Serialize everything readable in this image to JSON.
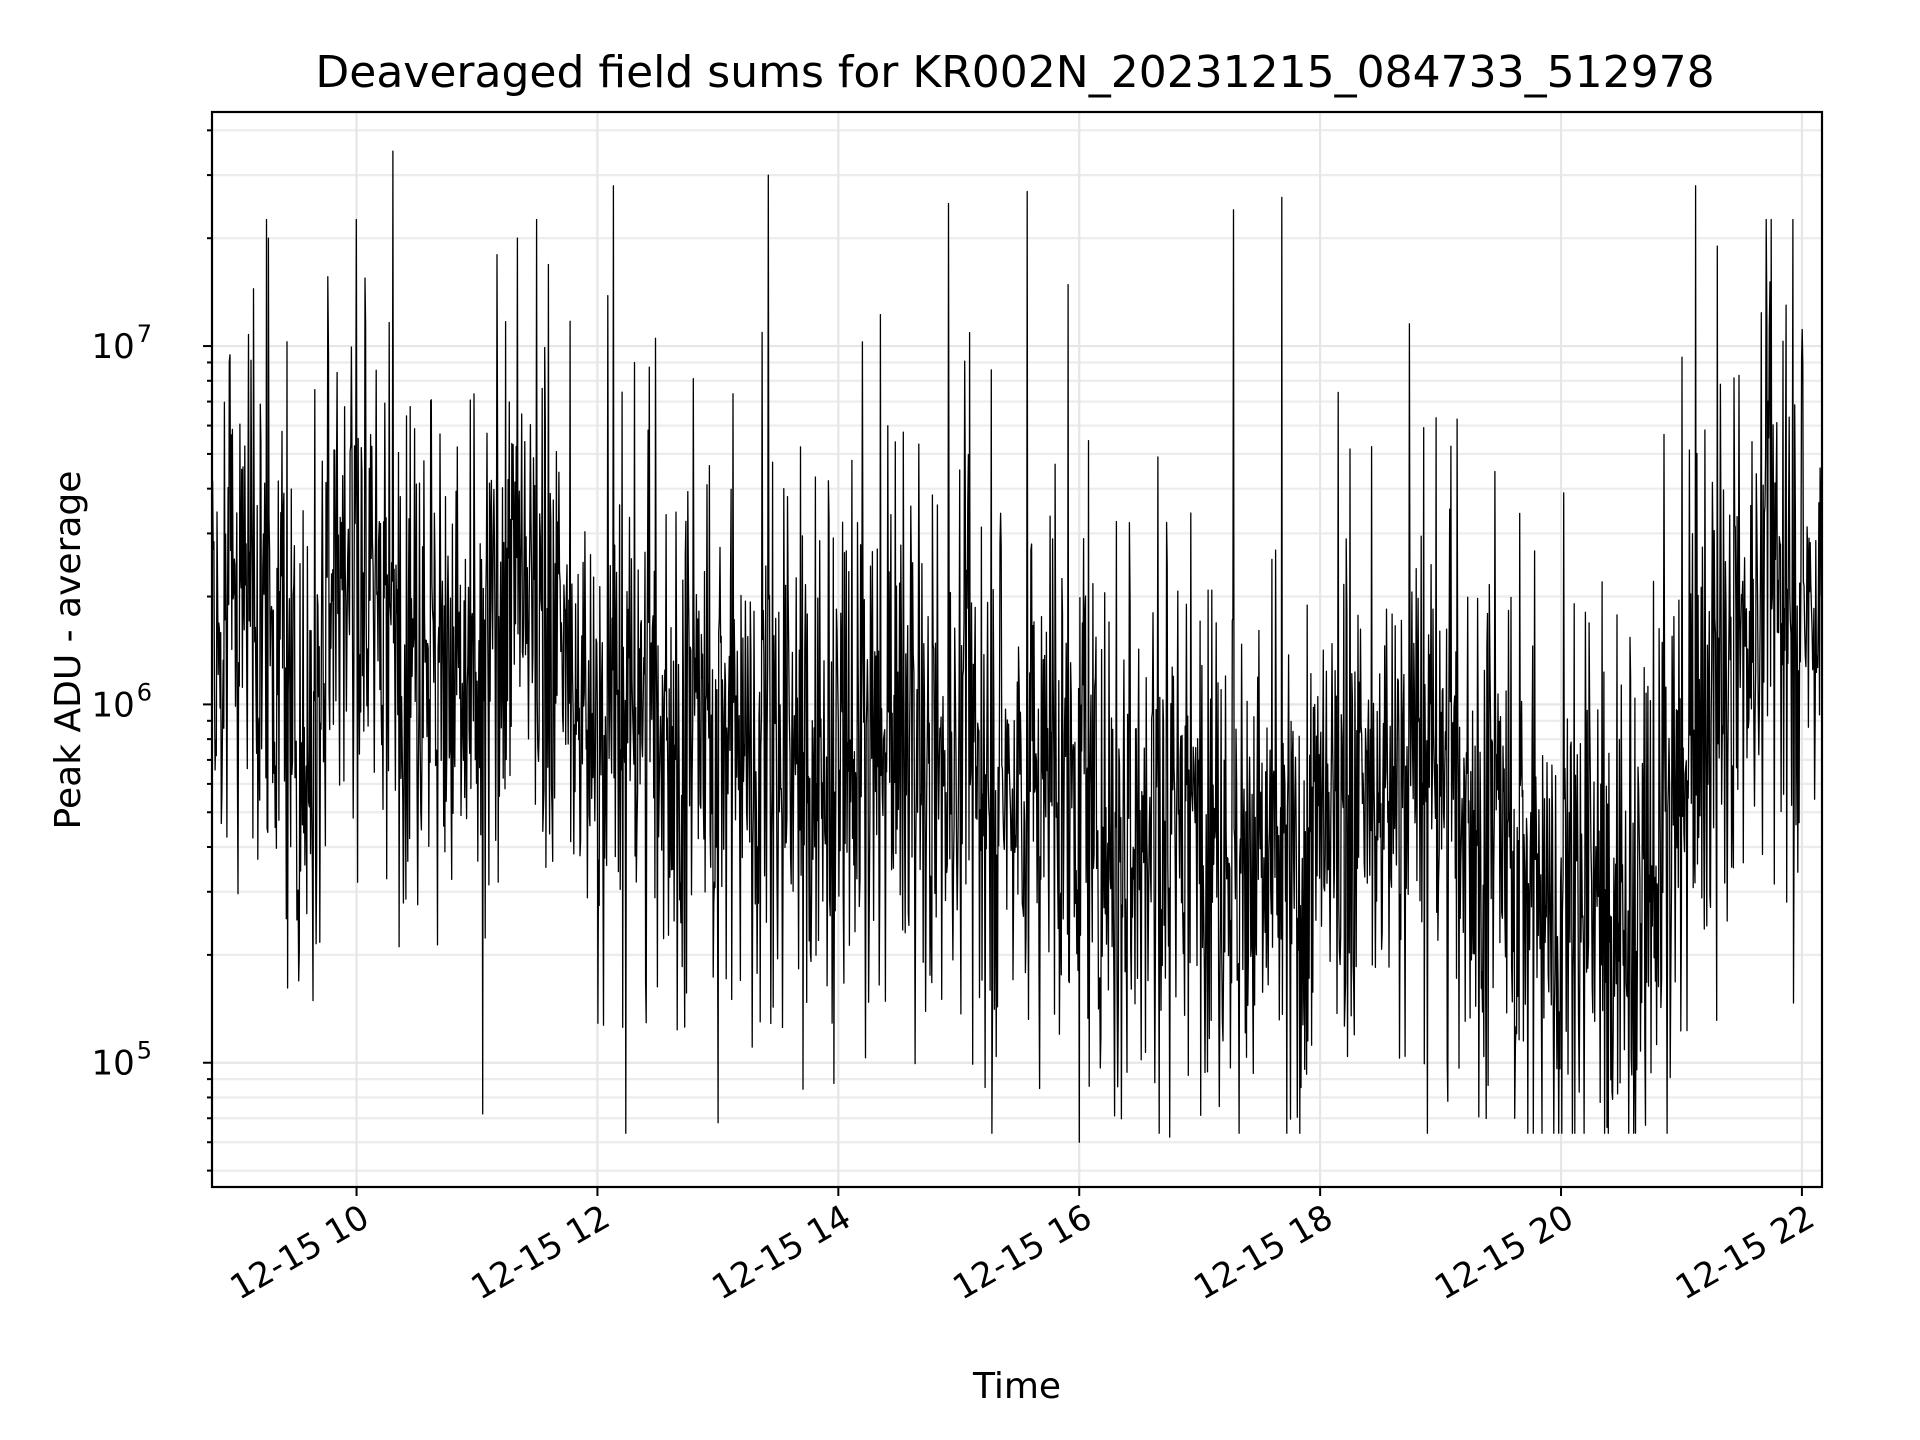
{
  "chart_data": {
    "type": "line",
    "title": "Deaveraged field sums for KR002N_20231215_084733_512978",
    "xlabel": "Time",
    "ylabel": "Peak ADU - average",
    "yscale": "log",
    "ylim": [
      45000,
      45000000
    ],
    "xlim": [
      "2023-12-15 08:48",
      "2023-12-15 22:10"
    ],
    "grid": true,
    "line_color": "#000000",
    "x_ticks": [
      "12-15 10",
      "12-15 12",
      "12-15 14",
      "12-15 16",
      "12-15 18",
      "12-15 20",
      "12-15 22"
    ],
    "y_ticks": [
      {
        "value": 100000,
        "base": "10",
        "exp": "5"
      },
      {
        "value": 1000000,
        "base": "10",
        "exp": "6"
      },
      {
        "value": 10000000,
        "base": "10",
        "exp": "7"
      }
    ],
    "series": [
      {
        "x": [
          "2023-12-15 08:48",
          "2023-12-15 09:00",
          "2023-12-15 09:12",
          "2023-12-15 09:24",
          "2023-12-15 09:36",
          "2023-12-15 09:48",
          "2023-12-15 10:00",
          "2023-12-15 10:12",
          "2023-12-15 10:24",
          "2023-12-15 10:36",
          "2023-12-15 10:48",
          "2023-12-15 11:00",
          "2023-12-15 11:12",
          "2023-12-15 11:24",
          "2023-12-15 11:36",
          "2023-12-15 11:48",
          "2023-12-15 12:00",
          "2023-12-15 12:12",
          "2023-12-15 12:24",
          "2023-12-15 12:36",
          "2023-12-15 12:48",
          "2023-12-15 13:00",
          "2023-12-15 13:12",
          "2023-12-15 13:24",
          "2023-12-15 13:36",
          "2023-12-15 13:48",
          "2023-12-15 14:00",
          "2023-12-15 14:12",
          "2023-12-15 14:24",
          "2023-12-15 14:36",
          "2023-12-15 14:48",
          "2023-12-15 15:00",
          "2023-12-15 15:12",
          "2023-12-15 15:24",
          "2023-12-15 15:36",
          "2023-12-15 15:48",
          "2023-12-15 16:00",
          "2023-12-15 16:12",
          "2023-12-15 16:24",
          "2023-12-15 16:36",
          "2023-12-15 16:48",
          "2023-12-15 17:00",
          "2023-12-15 17:12",
          "2023-12-15 17:24",
          "2023-12-15 17:36",
          "2023-12-15 17:48",
          "2023-12-15 18:00",
          "2023-12-15 18:12",
          "2023-12-15 18:24",
          "2023-12-15 18:36",
          "2023-12-15 18:48",
          "2023-12-15 19:00",
          "2023-12-15 19:12",
          "2023-12-15 19:24",
          "2023-12-15 19:36",
          "2023-12-15 19:48",
          "2023-12-15 20:00",
          "2023-12-15 20:12",
          "2023-12-15 20:24",
          "2023-12-15 20:36",
          "2023-12-15 20:48",
          "2023-12-15 21:00",
          "2023-12-15 21:12",
          "2023-12-15 21:24",
          "2023-12-15 21:36",
          "2023-12-15 21:48",
          "2023-12-15 22:00",
          "2023-12-15 22:10"
        ],
        "y": [
          1500000,
          2000000,
          1800000,
          1000000,
          700000,
          2500000,
          2500000,
          2000000,
          1500000,
          1600000,
          1200000,
          900000,
          2200000,
          1800000,
          1500000,
          1100000,
          800000,
          900000,
          1000000,
          800000,
          700000,
          900000,
          800000,
          700000,
          650000,
          600000,
          750000,
          700000,
          650000,
          700000,
          600000,
          700000,
          650000,
          600000,
          550000,
          600000,
          550000,
          450000,
          400000,
          450000,
          500000,
          550000,
          400000,
          350000,
          350000,
          300000,
          400000,
          450000,
          500000,
          600000,
          750000,
          650000,
          500000,
          400000,
          350000,
          300000,
          250000,
          300000,
          250000,
          250000,
          350000,
          500000,
          700000,
          1200000,
          1800000,
          2200000,
          2000000,
          1800000
        ],
        "peaks_x": [
          "2023-12-15 09:16",
          "2023-12-15 10:18",
          "2023-12-15 11:10",
          "2023-12-15 11:20",
          "2023-12-15 12:08",
          "2023-12-15 13:25",
          "2023-12-15 14:55",
          "2023-12-15 15:34",
          "2023-12-15 17:17",
          "2023-12-15 17:41",
          "2023-12-15 21:07",
          "2023-12-15 21:18",
          "2023-12-15 21:52"
        ],
        "peaks_y": [
          20000000,
          35000000,
          18000000,
          20000000,
          28000000,
          30000000,
          25000000,
          27000000,
          24000000,
          26000000,
          28000000,
          19000000,
          13000000
        ],
        "dips_x": [
          "2023-12-15 11:03",
          "2023-12-15 13:00",
          "2023-12-15 16:00",
          "2023-12-15 16:45",
          "2023-12-15 20:23"
        ],
        "dips_y": [
          72000,
          68000,
          60000,
          62000,
          66000
        ]
      }
    ]
  }
}
